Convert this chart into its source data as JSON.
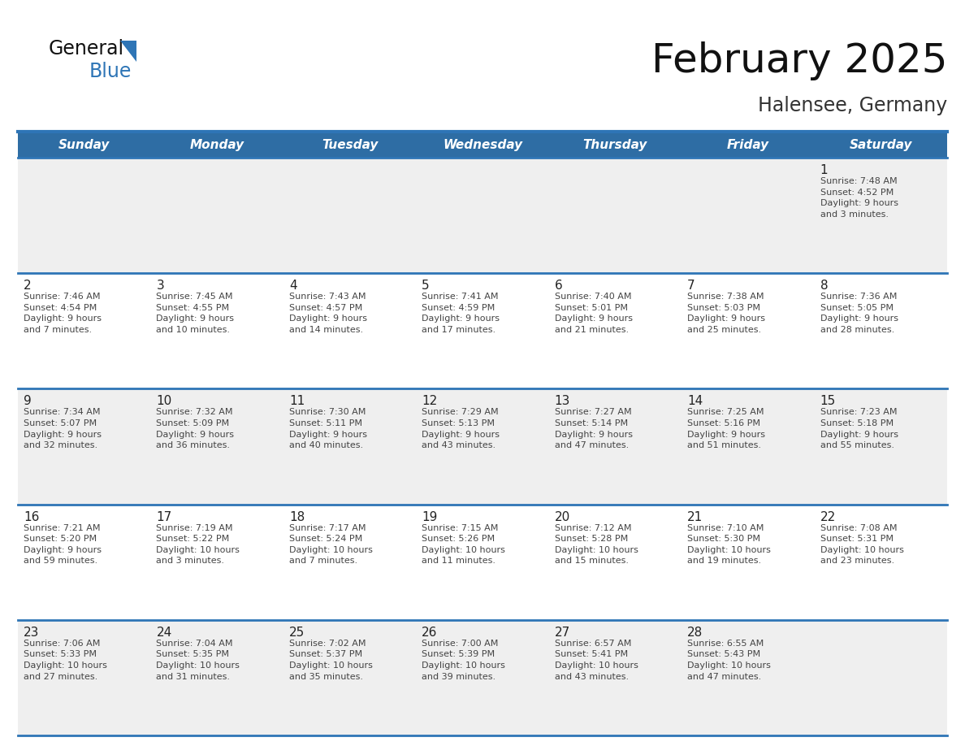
{
  "title": "February 2025",
  "subtitle": "Halensee, Germany",
  "days_of_week": [
    "Sunday",
    "Monday",
    "Tuesday",
    "Wednesday",
    "Thursday",
    "Friday",
    "Saturday"
  ],
  "header_bg": "#2E6DA4",
  "header_text": "#FFFFFF",
  "cell_bg_white": "#FFFFFF",
  "cell_bg_gray": "#EFEFEF",
  "separator_color": "#2E75B6",
  "day_number_color": "#222222",
  "cell_text_color": "#444444",
  "title_color": "#111111",
  "subtitle_color": "#333333",
  "logo_text_color": "#111111",
  "logo_blue_color": "#2E75B6",
  "weeks": [
    [
      {
        "day": null,
        "info": null
      },
      {
        "day": null,
        "info": null
      },
      {
        "day": null,
        "info": null
      },
      {
        "day": null,
        "info": null
      },
      {
        "day": null,
        "info": null
      },
      {
        "day": null,
        "info": null
      },
      {
        "day": 1,
        "info": "Sunrise: 7:48 AM\nSunset: 4:52 PM\nDaylight: 9 hours\nand 3 minutes."
      }
    ],
    [
      {
        "day": 2,
        "info": "Sunrise: 7:46 AM\nSunset: 4:54 PM\nDaylight: 9 hours\nand 7 minutes."
      },
      {
        "day": 3,
        "info": "Sunrise: 7:45 AM\nSunset: 4:55 PM\nDaylight: 9 hours\nand 10 minutes."
      },
      {
        "day": 4,
        "info": "Sunrise: 7:43 AM\nSunset: 4:57 PM\nDaylight: 9 hours\nand 14 minutes."
      },
      {
        "day": 5,
        "info": "Sunrise: 7:41 AM\nSunset: 4:59 PM\nDaylight: 9 hours\nand 17 minutes."
      },
      {
        "day": 6,
        "info": "Sunrise: 7:40 AM\nSunset: 5:01 PM\nDaylight: 9 hours\nand 21 minutes."
      },
      {
        "day": 7,
        "info": "Sunrise: 7:38 AM\nSunset: 5:03 PM\nDaylight: 9 hours\nand 25 minutes."
      },
      {
        "day": 8,
        "info": "Sunrise: 7:36 AM\nSunset: 5:05 PM\nDaylight: 9 hours\nand 28 minutes."
      }
    ],
    [
      {
        "day": 9,
        "info": "Sunrise: 7:34 AM\nSunset: 5:07 PM\nDaylight: 9 hours\nand 32 minutes."
      },
      {
        "day": 10,
        "info": "Sunrise: 7:32 AM\nSunset: 5:09 PM\nDaylight: 9 hours\nand 36 minutes."
      },
      {
        "day": 11,
        "info": "Sunrise: 7:30 AM\nSunset: 5:11 PM\nDaylight: 9 hours\nand 40 minutes."
      },
      {
        "day": 12,
        "info": "Sunrise: 7:29 AM\nSunset: 5:13 PM\nDaylight: 9 hours\nand 43 minutes."
      },
      {
        "day": 13,
        "info": "Sunrise: 7:27 AM\nSunset: 5:14 PM\nDaylight: 9 hours\nand 47 minutes."
      },
      {
        "day": 14,
        "info": "Sunrise: 7:25 AM\nSunset: 5:16 PM\nDaylight: 9 hours\nand 51 minutes."
      },
      {
        "day": 15,
        "info": "Sunrise: 7:23 AM\nSunset: 5:18 PM\nDaylight: 9 hours\nand 55 minutes."
      }
    ],
    [
      {
        "day": 16,
        "info": "Sunrise: 7:21 AM\nSunset: 5:20 PM\nDaylight: 9 hours\nand 59 minutes."
      },
      {
        "day": 17,
        "info": "Sunrise: 7:19 AM\nSunset: 5:22 PM\nDaylight: 10 hours\nand 3 minutes."
      },
      {
        "day": 18,
        "info": "Sunrise: 7:17 AM\nSunset: 5:24 PM\nDaylight: 10 hours\nand 7 minutes."
      },
      {
        "day": 19,
        "info": "Sunrise: 7:15 AM\nSunset: 5:26 PM\nDaylight: 10 hours\nand 11 minutes."
      },
      {
        "day": 20,
        "info": "Sunrise: 7:12 AM\nSunset: 5:28 PM\nDaylight: 10 hours\nand 15 minutes."
      },
      {
        "day": 21,
        "info": "Sunrise: 7:10 AM\nSunset: 5:30 PM\nDaylight: 10 hours\nand 19 minutes."
      },
      {
        "day": 22,
        "info": "Sunrise: 7:08 AM\nSunset: 5:31 PM\nDaylight: 10 hours\nand 23 minutes."
      }
    ],
    [
      {
        "day": 23,
        "info": "Sunrise: 7:06 AM\nSunset: 5:33 PM\nDaylight: 10 hours\nand 27 minutes."
      },
      {
        "day": 24,
        "info": "Sunrise: 7:04 AM\nSunset: 5:35 PM\nDaylight: 10 hours\nand 31 minutes."
      },
      {
        "day": 25,
        "info": "Sunrise: 7:02 AM\nSunset: 5:37 PM\nDaylight: 10 hours\nand 35 minutes."
      },
      {
        "day": 26,
        "info": "Sunrise: 7:00 AM\nSunset: 5:39 PM\nDaylight: 10 hours\nand 39 minutes."
      },
      {
        "day": 27,
        "info": "Sunrise: 6:57 AM\nSunset: 5:41 PM\nDaylight: 10 hours\nand 43 minutes."
      },
      {
        "day": 28,
        "info": "Sunrise: 6:55 AM\nSunset: 5:43 PM\nDaylight: 10 hours\nand 47 minutes."
      },
      {
        "day": null,
        "info": null
      }
    ]
  ]
}
